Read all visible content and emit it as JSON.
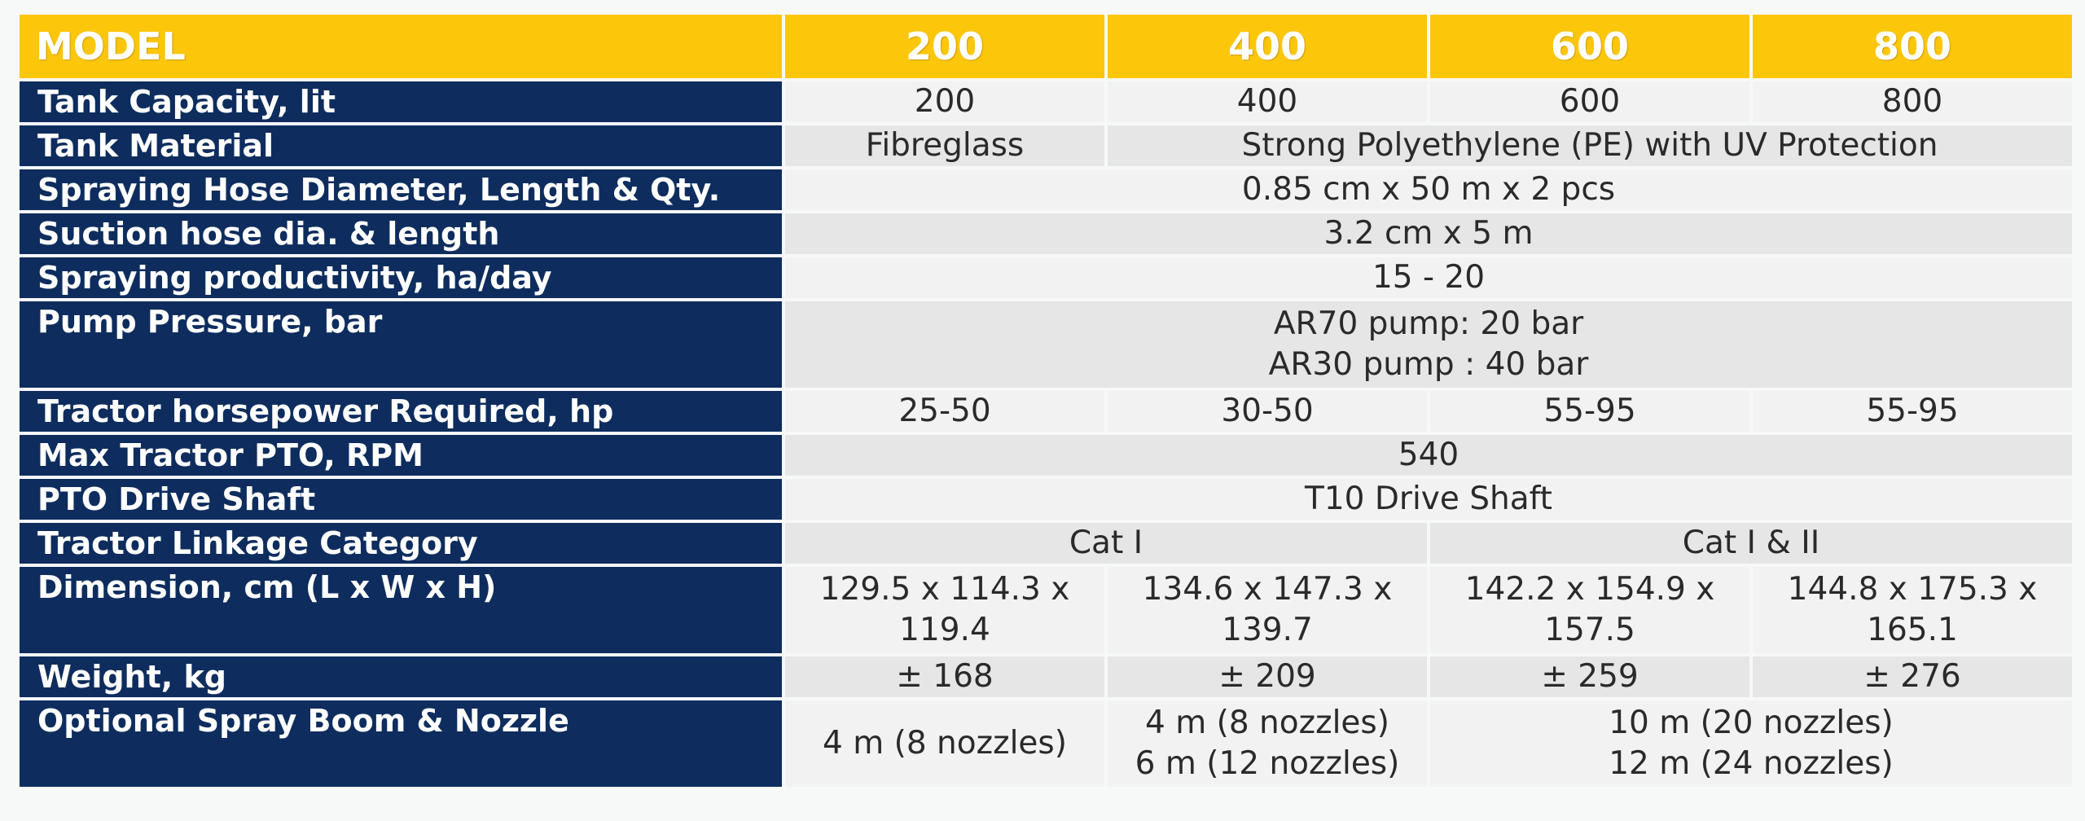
{
  "header": {
    "model_label": "MODEL",
    "models": [
      "200",
      "400",
      "600",
      "800"
    ]
  },
  "rows": {
    "tank_capacity": {
      "label": "Tank Capacity, lit",
      "values": [
        "200",
        "400",
        "600",
        "800"
      ]
    },
    "tank_material": {
      "label": "Tank Material",
      "v200": "Fibreglass",
      "v_rest": "Strong Polyethylene (PE) with UV Protection"
    },
    "hose": {
      "label": "Spraying Hose Diameter, Length & Qty.",
      "value": "0.85 cm x 50 m x 2 pcs"
    },
    "suction": {
      "label": "Suction hose dia. & length",
      "value": "3.2 cm x 5 m"
    },
    "productivity": {
      "label": "Spraying productivity, ha/day",
      "value": "15 - 20"
    },
    "pump": {
      "label": "Pump Pressure, bar",
      "line1": "AR70 pump: 20 bar",
      "line2": "AR30 pump : 40 bar"
    },
    "horsepower": {
      "label": "Tractor horsepower Required, hp",
      "values": [
        "25-50",
        "30-50",
        "55-95",
        "55-95"
      ]
    },
    "pto_rpm": {
      "label": "Max Tractor PTO, RPM",
      "value": "540"
    },
    "drive_shaft": {
      "label": "PTO Drive Shaft",
      "value": "T10 Drive Shaft"
    },
    "linkage": {
      "label": "Tractor Linkage Category",
      "v_small": "Cat I",
      "v_large": "Cat I & II"
    },
    "dimension": {
      "label": "Dimension, cm (L x W x H)",
      "values": [
        {
          "line1": "129.5 x 114.3 x",
          "line2": "119.4"
        },
        {
          "line1": "134.6 x 147.3 x",
          "line2": "139.7"
        },
        {
          "line1": "142.2 x 154.9 x",
          "line2": "157.5"
        },
        {
          "line1": "144.8 x 175.3 x",
          "line2": "165.1"
        }
      ]
    },
    "weight": {
      "label": "Weight, kg",
      "values": [
        "± 168",
        "± 209",
        "± 259",
        "± 276"
      ]
    },
    "boom": {
      "label": "Optional Spray Boom & Nozzle",
      "v200": "4 m (8 nozzles)",
      "v400_line1": "4 m (8 nozzles)",
      "v400_line2": "6 m (12 nozzles)",
      "v_large_line1": "10 m (20 nozzles)",
      "v_large_line2": "12 m (24 nozzles)"
    }
  },
  "colors": {
    "header_yellow": "#fcc60a",
    "label_navy": "#0e2d5e",
    "cell_grey": "#e6e6e6",
    "cell_light": "#f2f2f2"
  }
}
